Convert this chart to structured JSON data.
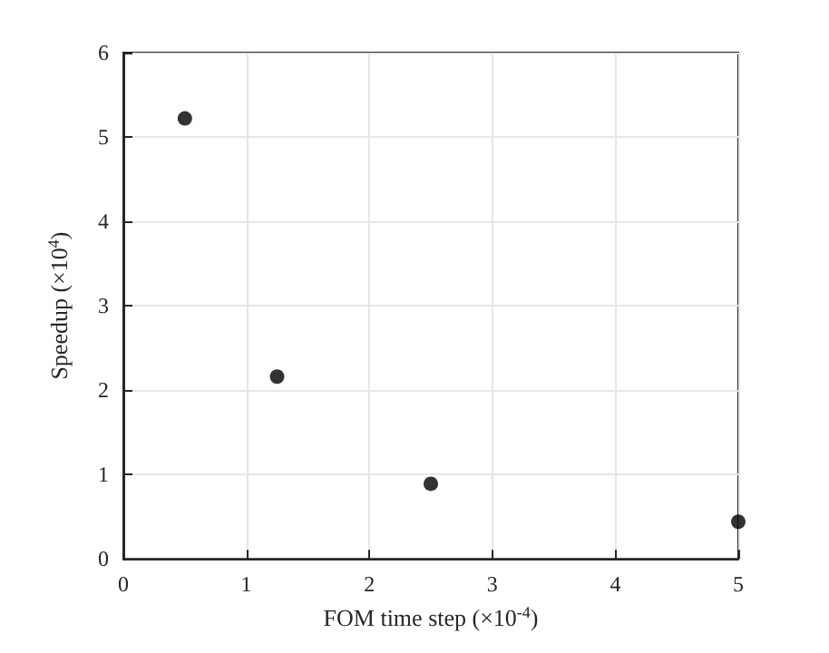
{
  "chart_data": {
    "type": "scatter",
    "xlabel": "FOM time step (×10$^{-4}$)",
    "ylabel": "Speedup (×10$^{4}$)",
    "x": [
      0.5,
      1.25,
      2.5,
      5
    ],
    "series": [
      {
        "color": "#000000",
        "values": [
          5.22,
          2.16,
          0.89,
          0.44
        ]
      }
    ],
    "xlim": [
      0,
      5
    ],
    "xticks": [
      0,
      1,
      2,
      3,
      4,
      5
    ],
    "ylim": [
      0,
      6
    ],
    "yticks": [
      0,
      1,
      2,
      3,
      4,
      5,
      6
    ],
    "grid": true,
    "marker": "circle"
  }
}
